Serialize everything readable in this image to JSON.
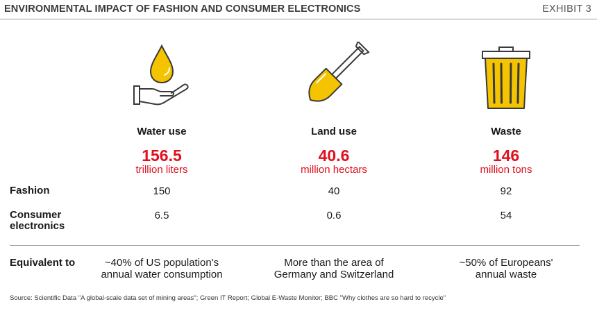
{
  "header": {
    "title": "ENVIRONMENTAL IMPACT OF FASHION AND CONSUMER ELECTRONICS",
    "exhibit": "EXHIBIT 3"
  },
  "row_labels": {
    "fashion": "Fashion",
    "consumer_line1": "Consumer",
    "consumer_line2": "electronics",
    "equivalent": "Equivalent to"
  },
  "columns": [
    {
      "icon": "water-drop-hand-icon",
      "heading": "Water use",
      "total": "156.5",
      "unit": "trillion liters",
      "fashion": "150",
      "consumer": "6.5",
      "equiv_line1": "~40% of US population's",
      "equiv_line2": "annual water consumption"
    },
    {
      "icon": "shovel-icon",
      "heading": "Land use",
      "total": "40.6",
      "unit": "million hectars",
      "fashion": "40",
      "consumer": "0.6",
      "equiv_line1": "More than the area of",
      "equiv_line2": "Germany and Switzerland"
    },
    {
      "icon": "trash-bin-icon",
      "heading": "Waste",
      "total": "146",
      "unit": "million tons",
      "fashion": "92",
      "consumer": "54",
      "equiv_line1": "~50% of Europeans'",
      "equiv_line2": "annual waste"
    }
  ],
  "colors": {
    "accent_red": "#e0101e",
    "icon_yellow": "#f5c400",
    "icon_outline": "#3a3a3a"
  },
  "source": "Source:  Scientific Data \"A global-scale data set of mining areas\"; Green IT Report; Global E-Waste Monitor; BBC \"Why clothes are so hard to recycle\""
}
